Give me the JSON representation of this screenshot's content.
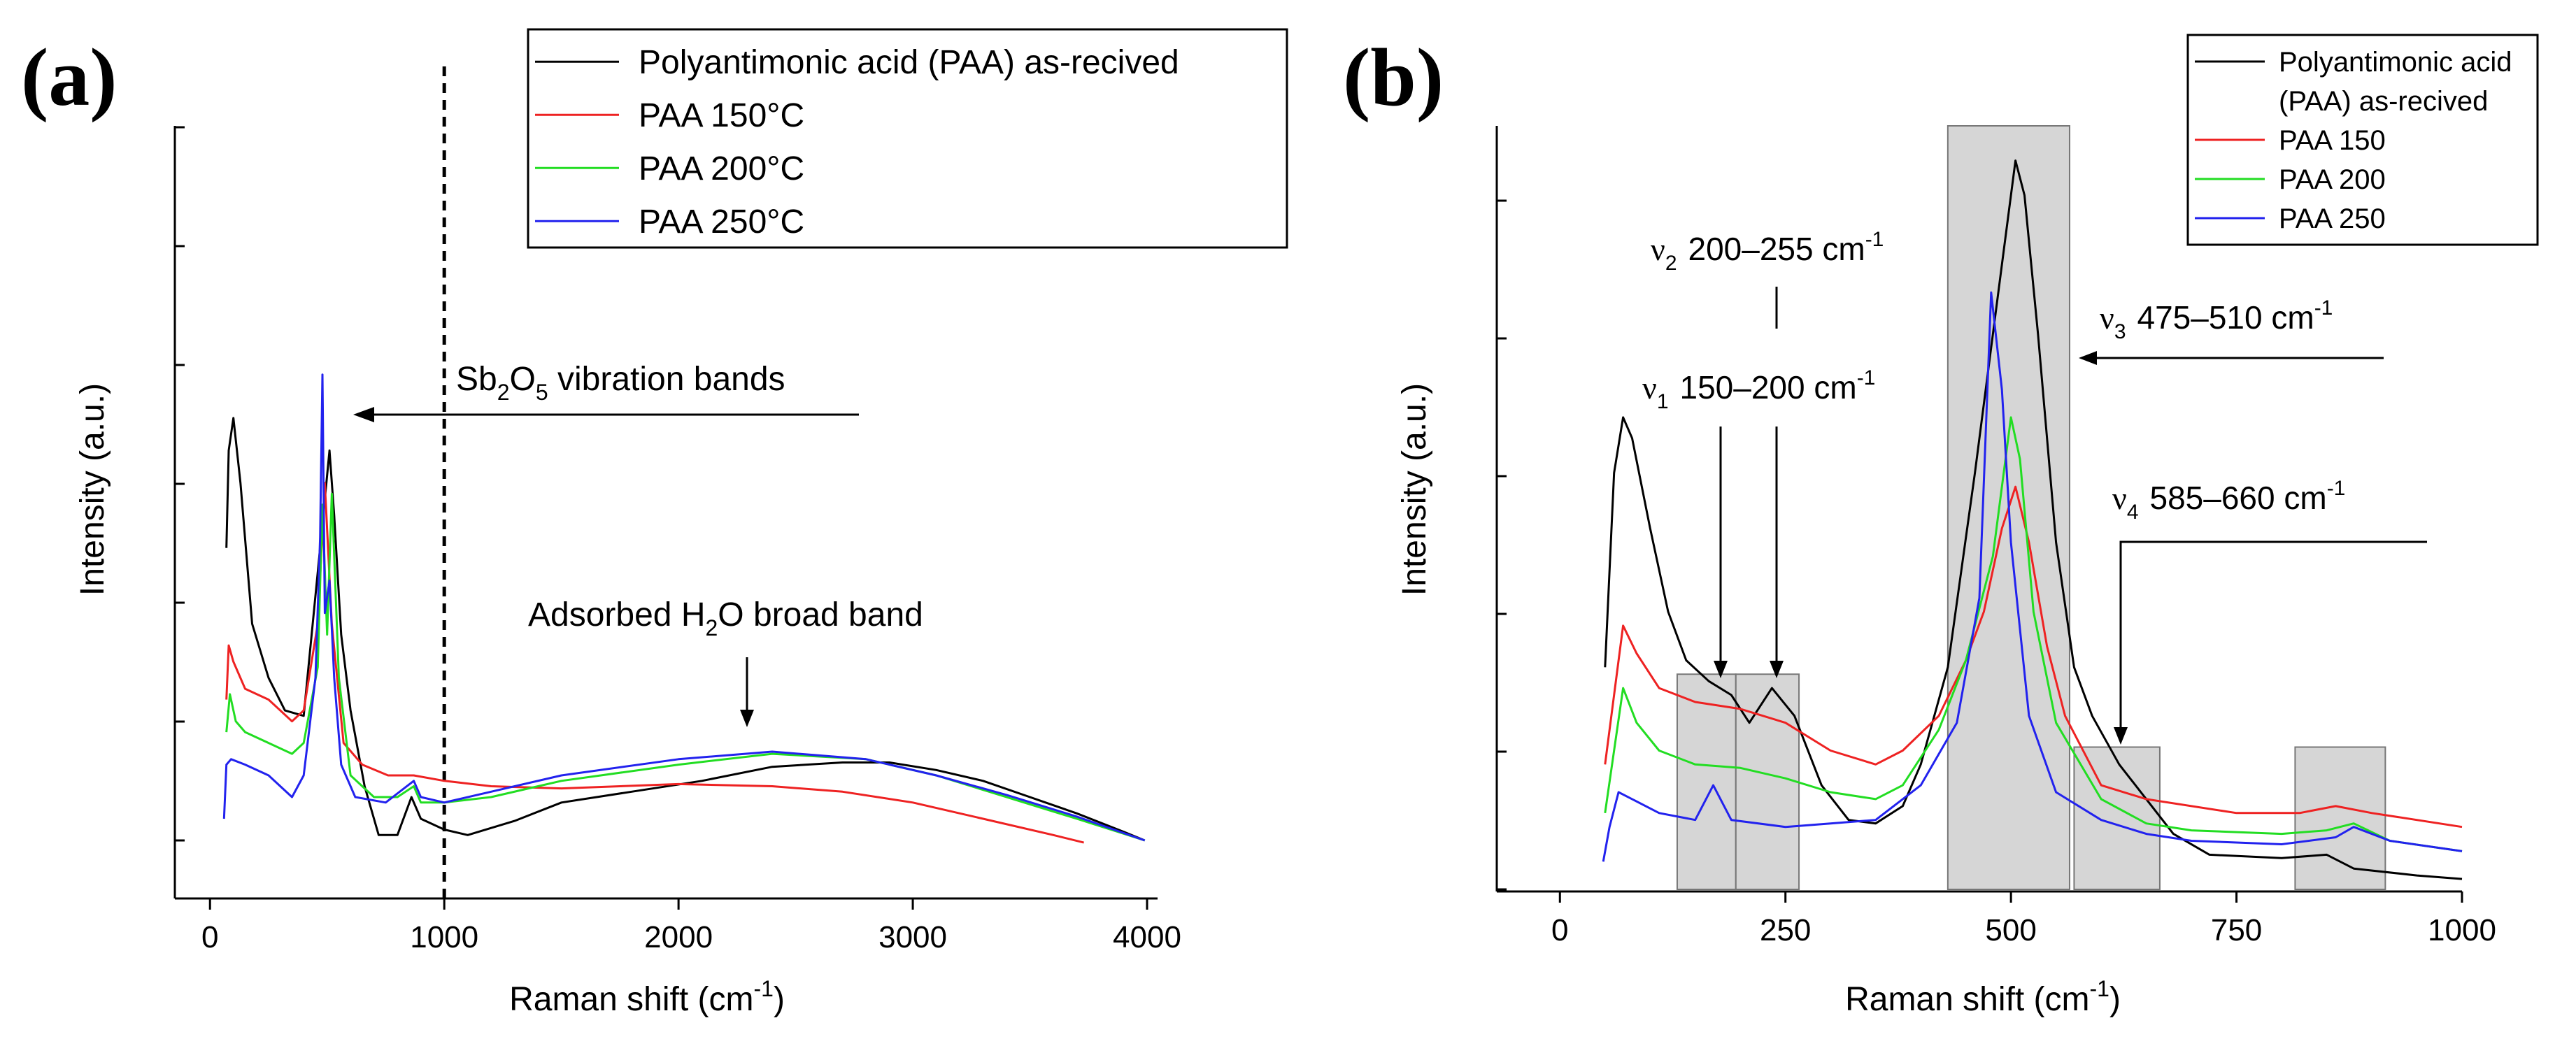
{
  "panel_a": {
    "label": "(a)",
    "annotation_sb2o5": {
      "pre": "Sb",
      "sub1": "2",
      "mid": "O",
      "sub2": "5",
      "post": " vibration bands"
    },
    "annotation_h2o": {
      "pre": "Adsorbed H",
      "sub": "2",
      "post": "O broad band"
    }
  },
  "panel_b": {
    "label": "(b)",
    "bands": [
      {
        "nu": "ν",
        "sub": "1",
        "range": "150–200 cm",
        "sup": "-1"
      },
      {
        "nu": "ν",
        "sub": "2",
        "range": "200–255 cm",
        "sup": "-1"
      },
      {
        "nu": "ν",
        "sub": "3",
        "range": "475–510 cm",
        "sup": "-1"
      },
      {
        "nu": "ν",
        "sub": "4",
        "range": "585–660 cm",
        "sup": "-1"
      }
    ]
  },
  "chart_data": [
    {
      "type": "line",
      "panel": "a",
      "xlabel": "Raman shift (cm",
      "xlabel_sup": "-1",
      "xlabel_close": ")",
      "ylabel": "Intensity (a.u.)",
      "xlim": [
        -150,
        4000
      ],
      "ylim": [
        0,
        650
      ],
      "xticks": [
        0,
        1000,
        2000,
        3000,
        4000
      ],
      "xtick_labels": [
        "0",
        "1000",
        "2000",
        "3000",
        "4000"
      ],
      "dashed_vline_x": 1000,
      "legend_position": "top-right",
      "series": [
        {
          "name": "Polyantimonic acid (PAA) as-recived",
          "color": "#000000",
          "points": [
            [
              70,
              270
            ],
            [
              80,
              360
            ],
            [
              100,
              390
            ],
            [
              130,
              330
            ],
            [
              180,
              200
            ],
            [
              250,
              150
            ],
            [
              320,
              120
            ],
            [
              400,
              115
            ],
            [
              470,
              270
            ],
            [
              510,
              360
            ],
            [
              530,
              300
            ],
            [
              560,
              190
            ],
            [
              600,
              120
            ],
            [
              660,
              50
            ],
            [
              720,
              5
            ],
            [
              800,
              5
            ],
            [
              860,
              40
            ],
            [
              900,
              20
            ],
            [
              1000,
              10
            ],
            [
              1100,
              5
            ],
            [
              1300,
              18
            ],
            [
              1500,
              35
            ],
            [
              1800,
              45
            ],
            [
              2100,
              55
            ],
            [
              2400,
              68
            ],
            [
              2700,
              72
            ],
            [
              2900,
              72
            ],
            [
              3100,
              65
            ],
            [
              3300,
              55
            ],
            [
              3500,
              40
            ],
            [
              3700,
              25
            ],
            [
              3900,
              8
            ],
            [
              3990,
              0
            ]
          ]
        },
        {
          "name": "PAA 150°C",
          "color": "#ee2222",
          "points": [
            [
              70,
              130
            ],
            [
              80,
              180
            ],
            [
              100,
              165
            ],
            [
              150,
              140
            ],
            [
              250,
              130
            ],
            [
              350,
              110
            ],
            [
              400,
              120
            ],
            [
              460,
              200
            ],
            [
              490,
              330
            ],
            [
              520,
              200
            ],
            [
              570,
              90
            ],
            [
              650,
              70
            ],
            [
              760,
              60
            ],
            [
              870,
              60
            ],
            [
              1000,
              55
            ],
            [
              1200,
              50
            ],
            [
              1500,
              48
            ],
            [
              2000,
              52
            ],
            [
              2400,
              50
            ],
            [
              2700,
              45
            ],
            [
              3000,
              35
            ],
            [
              3300,
              20
            ],
            [
              3600,
              5
            ],
            [
              3730,
              -2
            ]
          ]
        },
        {
          "name": "PAA 200°C",
          "color": "#22dd22",
          "points": [
            [
              70,
              100
            ],
            [
              85,
              135
            ],
            [
              110,
              110
            ],
            [
              150,
              100
            ],
            [
              250,
              90
            ],
            [
              350,
              80
            ],
            [
              400,
              90
            ],
            [
              460,
              160
            ],
            [
              480,
              310
            ],
            [
              500,
              190
            ],
            [
              520,
              320
            ],
            [
              550,
              150
            ],
            [
              600,
              60
            ],
            [
              700,
              40
            ],
            [
              800,
              40
            ],
            [
              870,
              50
            ],
            [
              900,
              35
            ],
            [
              1000,
              35
            ],
            [
              1200,
              40
            ],
            [
              1500,
              55
            ],
            [
              2000,
              70
            ],
            [
              2400,
              80
            ],
            [
              2800,
              75
            ],
            [
              3100,
              60
            ],
            [
              3400,
              40
            ],
            [
              3700,
              20
            ],
            [
              3990,
              0
            ]
          ]
        },
        {
          "name": "PAA 250°C",
          "color": "#2222ee",
          "points": [
            [
              60,
              20
            ],
            [
              70,
              70
            ],
            [
              90,
              75
            ],
            [
              150,
              70
            ],
            [
              250,
              60
            ],
            [
              350,
              40
            ],
            [
              400,
              60
            ],
            [
              450,
              150
            ],
            [
              470,
              280
            ],
            [
              480,
              430
            ],
            [
              490,
              210
            ],
            [
              510,
              240
            ],
            [
              530,
              150
            ],
            [
              560,
              70
            ],
            [
              620,
              40
            ],
            [
              750,
              35
            ],
            [
              870,
              55
            ],
            [
              900,
              40
            ],
            [
              1000,
              35
            ],
            [
              1200,
              45
            ],
            [
              1500,
              60
            ],
            [
              2000,
              75
            ],
            [
              2400,
              82
            ],
            [
              2800,
              75
            ],
            [
              3100,
              60
            ],
            [
              3400,
              42
            ],
            [
              3700,
              22
            ],
            [
              3990,
              0
            ]
          ]
        }
      ]
    },
    {
      "type": "line",
      "panel": "b",
      "xlabel": "Raman shift (cm",
      "xlabel_sup": "-1",
      "xlabel_close": ")",
      "ylabel": "Intensity (a.u.)",
      "xlim": [
        -70,
        1000
      ],
      "ylim": [
        0,
        1100
      ],
      "xticks": [
        0,
        250,
        500,
        750,
        1000
      ],
      "xtick_labels": [
        "0",
        "250",
        "500",
        "750",
        "1000"
      ],
      "legend_position": "top-right",
      "shaded_bands": [
        [
          130,
          195,
          0,
          310
        ],
        [
          195,
          265,
          0,
          310
        ],
        [
          430,
          565,
          0,
          1100
        ],
        [
          570,
          665,
          0,
          205
        ],
        [
          815,
          915,
          0,
          205
        ]
      ],
      "series": [
        {
          "name": "Polyantimonic acid (PAA) as-recived",
          "color": "#000000",
          "points": [
            [
              50,
              320
            ],
            [
              60,
              600
            ],
            [
              70,
              680
            ],
            [
              80,
              650
            ],
            [
              100,
              520
            ],
            [
              120,
              400
            ],
            [
              140,
              330
            ],
            [
              165,
              300
            ],
            [
              190,
              280
            ],
            [
              210,
              240
            ],
            [
              235,
              290
            ],
            [
              260,
              250
            ],
            [
              290,
              150
            ],
            [
              320,
              100
            ],
            [
              350,
              95
            ],
            [
              380,
              120
            ],
            [
              400,
              180
            ],
            [
              430,
              320
            ],
            [
              460,
              600
            ],
            [
              490,
              900
            ],
            [
              505,
              1050
            ],
            [
              515,
              1000
            ],
            [
              530,
              800
            ],
            [
              550,
              500
            ],
            [
              570,
              320
            ],
            [
              590,
              250
            ],
            [
              620,
              180
            ],
            [
              650,
              130
            ],
            [
              680,
              80
            ],
            [
              720,
              50
            ],
            [
              800,
              45
            ],
            [
              850,
              50
            ],
            [
              880,
              30
            ],
            [
              950,
              20
            ],
            [
              1000,
              15
            ]
          ]
        },
        {
          "name": "PAA 150",
          "color": "#ee2222",
          "points": [
            [
              50,
              180
            ],
            [
              60,
              280
            ],
            [
              70,
              380
            ],
            [
              85,
              340
            ],
            [
              110,
              290
            ],
            [
              150,
              270
            ],
            [
              200,
              260
            ],
            [
              250,
              240
            ],
            [
              300,
              200
            ],
            [
              350,
              180
            ],
            [
              380,
              200
            ],
            [
              420,
              250
            ],
            [
              450,
              330
            ],
            [
              470,
              400
            ],
            [
              490,
              520
            ],
            [
              505,
              580
            ],
            [
              520,
              500
            ],
            [
              540,
              350
            ],
            [
              560,
              250
            ],
            [
              600,
              150
            ],
            [
              650,
              130
            ],
            [
              750,
              110
            ],
            [
              820,
              110
            ],
            [
              860,
              120
            ],
            [
              900,
              110
            ],
            [
              1000,
              90
            ]
          ]
        },
        {
          "name": "PAA 200",
          "color": "#22dd22",
          "points": [
            [
              50,
              110
            ],
            [
              60,
              200
            ],
            [
              70,
              290
            ],
            [
              85,
              240
            ],
            [
              110,
              200
            ],
            [
              150,
              180
            ],
            [
              200,
              175
            ],
            [
              250,
              160
            ],
            [
              300,
              140
            ],
            [
              350,
              130
            ],
            [
              380,
              150
            ],
            [
              420,
              230
            ],
            [
              450,
              330
            ],
            [
              480,
              480
            ],
            [
              500,
              680
            ],
            [
              510,
              620
            ],
            [
              525,
              400
            ],
            [
              550,
              240
            ],
            [
              600,
              130
            ],
            [
              650,
              95
            ],
            [
              700,
              85
            ],
            [
              800,
              80
            ],
            [
              850,
              85
            ],
            [
              880,
              95
            ],
            [
              920,
              70
            ],
            [
              1000,
              55
            ]
          ]
        },
        {
          "name": "PAA 250",
          "color": "#2222ee",
          "points": [
            [
              48,
              40
            ],
            [
              55,
              90
            ],
            [
              65,
              140
            ],
            [
              80,
              130
            ],
            [
              110,
              110
            ],
            [
              150,
              100
            ],
            [
              170,
              150
            ],
            [
              190,
              100
            ],
            [
              250,
              90
            ],
            [
              300,
              95
            ],
            [
              350,
              100
            ],
            [
              400,
              150
            ],
            [
              440,
              240
            ],
            [
              465,
              420
            ],
            [
              478,
              860
            ],
            [
              490,
              720
            ],
            [
              500,
              500
            ],
            [
              520,
              250
            ],
            [
              550,
              140
            ],
            [
              600,
              100
            ],
            [
              650,
              80
            ],
            [
              700,
              70
            ],
            [
              800,
              65
            ],
            [
              860,
              75
            ],
            [
              880,
              90
            ],
            [
              920,
              70
            ],
            [
              1000,
              55
            ]
          ]
        }
      ]
    }
  ]
}
